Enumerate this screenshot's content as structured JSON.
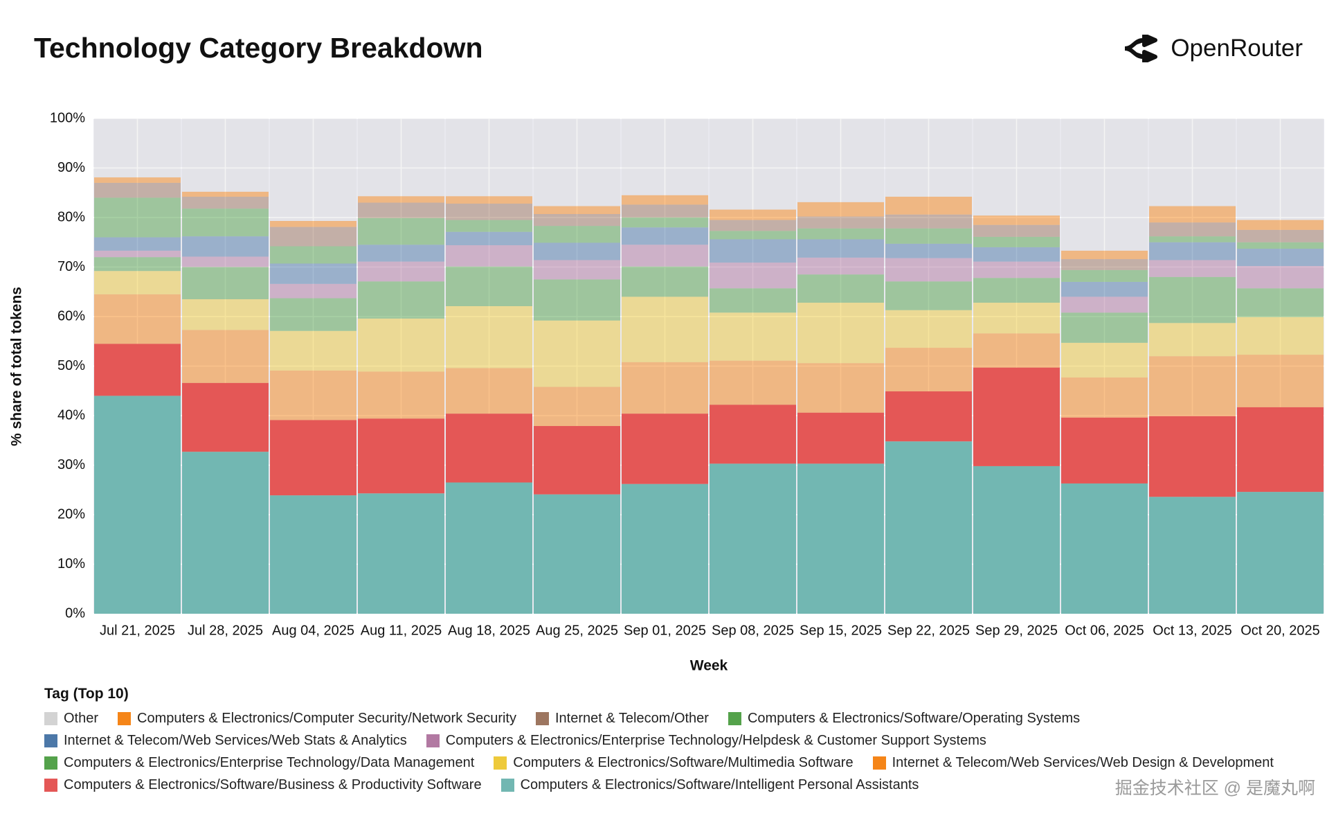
{
  "header": {
    "title": "Technology Category Breakdown",
    "brand": "OpenRouter"
  },
  "watermark": "掘金技术社区 @ 是魔丸啊",
  "chart_data": {
    "type": "stacked_bar",
    "x_label": "Week",
    "y_label": "% share of total tokens",
    "legend_title": "Tag (Top 10)",
    "categories": [
      "Jul 21, 2025",
      "Jul 28, 2025",
      "Aug 04, 2025",
      "Aug 11, 2025",
      "Aug 18, 2025",
      "Aug 25, 2025",
      "Sep 01, 2025",
      "Sep 08, 2025",
      "Sep 15, 2025",
      "Sep 22, 2025",
      "Sep 29, 2025",
      "Oct 06, 2025",
      "Oct 13, 2025",
      "Oct 20, 2025"
    ],
    "ylim": [
      0,
      100
    ],
    "yticks": [
      {
        "value": 0,
        "label": "0%"
      },
      {
        "value": 10,
        "label": "10%"
      },
      {
        "value": 20,
        "label": "20%"
      },
      {
        "value": 30,
        "label": "30%"
      },
      {
        "value": 40,
        "label": "40%"
      },
      {
        "value": 50,
        "label": "50%"
      },
      {
        "value": 60,
        "label": "60%"
      },
      {
        "value": 70,
        "label": "70%"
      },
      {
        "value": 80,
        "label": "80%"
      },
      {
        "value": 90,
        "label": "90%"
      },
      {
        "value": 100,
        "label": "100%"
      }
    ],
    "grid": true,
    "series": [
      {
        "name": "Other",
        "color": "#d3d3d3",
        "values": [
          11.9,
          14.8,
          20.7,
          15.7,
          15.7,
          17.7,
          15.5,
          18.4,
          16.9,
          15.8,
          19.6,
          26.7,
          17.7,
          20.5
        ]
      },
      {
        "name": "Computers & Electronics/Computer Security/Network Security",
        "color": "#f58518",
        "values": [
          1.1,
          1.0,
          1.2,
          1.3,
          1.5,
          1.6,
          1.9,
          2.1,
          2.9,
          3.6,
          1.9,
          1.7,
          3.3,
          2.0
        ]
      },
      {
        "name": "Internet & Telecom/Other",
        "color": "#9d7660",
        "values": [
          3.0,
          2.4,
          3.9,
          3.1,
          3.3,
          2.4,
          2.6,
          2.2,
          2.4,
          2.8,
          2.4,
          2.2,
          2.8,
          2.5
        ]
      },
      {
        "name": "Computers & Electronics/Software/Operating Systems",
        "color": "#54a24b",
        "values": [
          8.0,
          5.6,
          3.5,
          5.4,
          2.4,
          3.4,
          2.0,
          1.7,
          2.2,
          3.1,
          2.1,
          2.4,
          1.2,
          1.3
        ]
      },
      {
        "name": "Internet & Telecom/Web Services/Web Stats & Analytics",
        "color": "#4c78a8",
        "values": [
          2.7,
          4.1,
          4.1,
          3.4,
          2.7,
          3.5,
          3.5,
          4.7,
          3.7,
          2.9,
          2.9,
          3.0,
          3.6,
          3.5
        ]
      },
      {
        "name": "Computers & Electronics/Enterprise Technology/Helpdesk & Customer Support Systems",
        "color": "#b279a2",
        "values": [
          1.3,
          2.1,
          2.9,
          4.0,
          4.3,
          3.9,
          4.4,
          5.2,
          3.4,
          4.7,
          3.3,
          3.2,
          3.4,
          4.5
        ]
      },
      {
        "name": "Computers & Electronics/Enterprise Technology/Data Management",
        "color": "#54a24b",
        "values": [
          2.8,
          6.5,
          6.6,
          7.5,
          8.0,
          8.3,
          6.1,
          4.9,
          5.7,
          5.8,
          5.0,
          6.1,
          9.3,
          5.8
        ]
      },
      {
        "name": "Computers & Electronics/Software/Multimedia Software",
        "color": "#eeca3b",
        "values": [
          4.7,
          6.2,
          8.0,
          10.7,
          12.5,
          13.4,
          13.2,
          9.7,
          12.2,
          7.6,
          6.2,
          7.0,
          6.7,
          7.6
        ]
      },
      {
        "name": "Internet & Telecom/Web Services/Web Design & Development",
        "color": "#f58518",
        "values": [
          10.0,
          10.7,
          10.0,
          9.5,
          9.2,
          7.9,
          10.4,
          8.9,
          10.0,
          8.8,
          6.9,
          8.1,
          12.1,
          10.6
        ]
      },
      {
        "name": "Computers & Electronics/Software/Business & Productivity Software",
        "color": "#e45756",
        "values": [
          10.5,
          13.9,
          15.2,
          15.1,
          13.9,
          13.8,
          14.2,
          11.9,
          10.3,
          10.1,
          19.9,
          13.3,
          16.3,
          17.1
        ]
      },
      {
        "name": "Computers & Electronics/Software/Intelligent Personal Assistants",
        "color": "#72b7b2",
        "values": [
          44.0,
          32.7,
          23.9,
          24.3,
          26.5,
          24.1,
          26.2,
          30.3,
          30.3,
          34.8,
          29.8,
          26.3,
          23.6,
          24.6
        ]
      }
    ]
  }
}
